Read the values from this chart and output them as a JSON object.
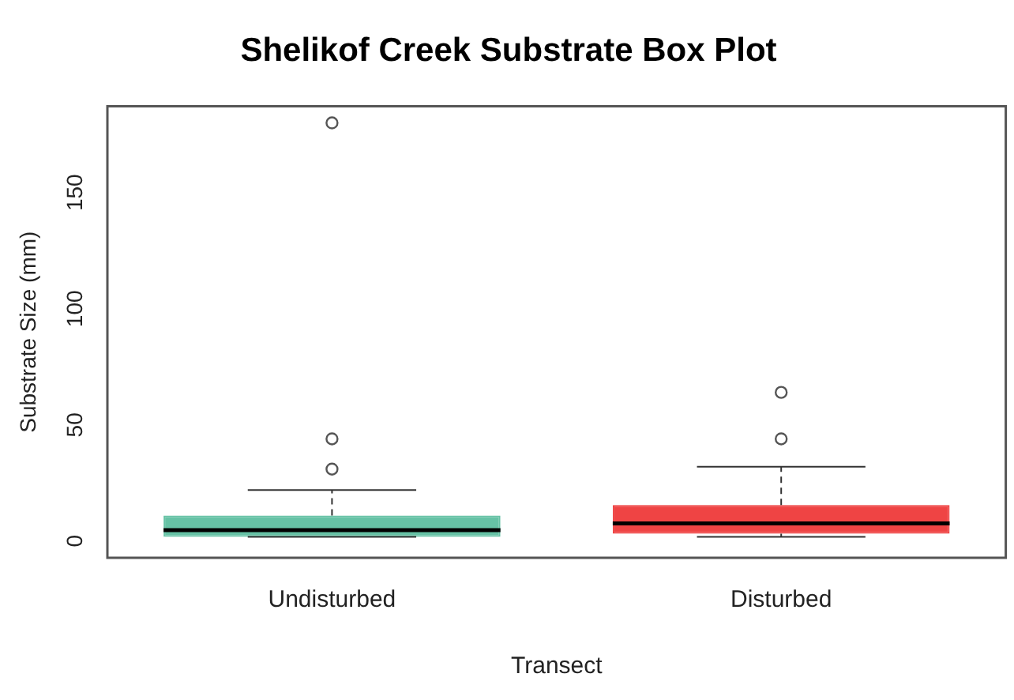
{
  "chart_data": {
    "type": "box",
    "title": "Shelikof Creek Substrate Box Plot",
    "xlabel": "Transect",
    "ylabel": "Substrate Size (mm)",
    "categories": [
      "Undisturbed",
      "Disturbed"
    ],
    "colors": [
      "#66c2a5",
      "#ef4444"
    ],
    "boxes": [
      {
        "low": 1.8,
        "q1": 1.8,
        "median": 4.7,
        "q3": 11,
        "high": 22,
        "outliers": [
          31,
          44,
          180
        ]
      },
      {
        "low": 1.8,
        "q1": 3.2,
        "median": 7.6,
        "q3": 15.5,
        "high": 32,
        "outliers": [
          44,
          64
        ]
      }
    ],
    "ylim": [
      -7.2,
      187.2
    ],
    "yticks": [
      0,
      50,
      100,
      150
    ],
    "grid": false,
    "legend": false
  }
}
